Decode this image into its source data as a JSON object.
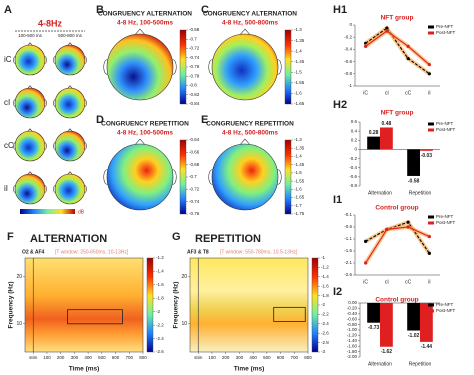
{
  "panels": {
    "A": {
      "panel": "A",
      "title": "4-8Hz",
      "windows": [
        "100-500 ms",
        "500-800 ms"
      ],
      "rows": [
        "iC",
        "cI",
        "cC",
        "iI"
      ],
      "colorbar_label": "dB"
    },
    "B": {
      "panel": "B",
      "title": "CONGRUENCY ALTERNATION",
      "subtitle": "4-8 Hz, 100-500ms",
      "colorbar_ticks": [
        -0.68,
        -0.7,
        -0.72,
        -0.74,
        -0.76,
        -0.78,
        -0.8,
        -0.82,
        -0.84
      ]
    },
    "C": {
      "panel": "C",
      "title": "CONGRUENCY ALTERNATION",
      "subtitle": "4-8 Hz, 500-800ms",
      "colorbar_ticks": [
        -1.3,
        -1.35,
        -1.4,
        -1.45,
        -1.5,
        -1.55,
        -1.6,
        -1.65
      ]
    },
    "D": {
      "panel": "D",
      "title": "CONGRUENCY REPETITION",
      "subtitle": "4-8 Hz, 100-500ms",
      "colorbar_ticks": [
        -0.64,
        -0.66,
        -0.68,
        -0.7,
        -0.72,
        -0.74,
        -0.76
      ]
    },
    "E": {
      "panel": "E",
      "title": "CONGRUENCY REPETITION",
      "subtitle": "4-8 Hz, 500-800ms",
      "colorbar_ticks": [
        -1.3,
        -1.35,
        -1.4,
        -1.45,
        -1.5,
        -1.55,
        -1.6,
        -1.65,
        -1.7,
        -1.75
      ]
    },
    "F": {
      "panel": "F",
      "title": "ALTERNATION",
      "channels": "O2 & AF4",
      "window": "[T window: 250-650ms, 10-13Hz]",
      "ylabel": "Frequency (Hz)",
      "xlabel": "Time (ms)",
      "xlim": [
        -60,
        800
      ],
      "xticks": [
        {
          "value": 0,
          "label": "stim"
        },
        100,
        200,
        300,
        400,
        500,
        600,
        700,
        800
      ],
      "ylim": [
        4,
        24
      ],
      "yticks": [
        10,
        20
      ],
      "colorbar_ticks": [
        -1.2,
        -1.4,
        -1.6,
        -1.8,
        -2,
        -2.2,
        -2.4,
        -2.6
      ]
    },
    "G": {
      "panel": "G",
      "title": "REPETITION",
      "channels": "AF3 & T8",
      "window": "[T window: 550-780ms, 10.5-13Hz]",
      "ylabel": "Frequency (Hz)",
      "xlabel": "Time (ms)",
      "xlim": [
        -60,
        800
      ],
      "xticks": [
        {
          "value": 0,
          "label": "stim"
        },
        100,
        200,
        300,
        400,
        500,
        600,
        700,
        800
      ],
      "ylim": [
        4,
        24
      ],
      "yticks": [
        10,
        20
      ],
      "colorbar_ticks": [
        -1,
        -1.2,
        -1.4,
        -1.6,
        -1.8,
        -2,
        -2.2,
        -2.4,
        -2.6,
        -2.8,
        -3
      ]
    }
  },
  "chart_data": [
    {
      "panel": "H1",
      "type": "line",
      "title": "NFT group",
      "categories": [
        "iC",
        "cI",
        "cC",
        "iI"
      ],
      "series": [
        {
          "name": "Pre-NFT",
          "color": "#000000",
          "values": [
            -0.3,
            -0.05,
            -0.55,
            -0.8
          ]
        },
        {
          "name": "Post-NFT",
          "color": "#e02020",
          "values": [
            -0.35,
            -0.1,
            -0.35,
            -0.65
          ]
        }
      ],
      "ylim": [
        -1,
        0
      ],
      "yticks": [
        -1,
        -0.8,
        -0.6,
        -0.4,
        -0.2,
        0
      ],
      "legend": "upper right"
    },
    {
      "panel": "H2",
      "type": "bar",
      "title": "NFT group",
      "categories": [
        "Alternation",
        "Repetition"
      ],
      "series": [
        {
          "name": "Pre-NFT",
          "color": "#000000",
          "values": [
            0.28,
            -0.58
          ]
        },
        {
          "name": "Post-NFT",
          "color": "#e02020",
          "values": [
            0.48,
            -0.03
          ]
        }
      ],
      "ylim": [
        -0.8,
        0.6
      ],
      "yticks": [
        -0.8,
        -0.6,
        -0.4,
        -0.2,
        0,
        0.2,
        0.4,
        0.6
      ],
      "legend": "upper right"
    },
    {
      "panel": "I1",
      "type": "line",
      "title": "Control group",
      "categories": [
        "iC",
        "cI",
        "cC",
        "iI"
      ],
      "series": [
        {
          "name": "Pre-NFT",
          "color": "#000000",
          "values": [
            -1.2,
            -0.7,
            -0.4,
            -1.7
          ]
        },
        {
          "name": "Post-NFT",
          "color": "#e02020",
          "values": [
            -2.1,
            -0.7,
            -0.6,
            -1.0
          ]
        }
      ],
      "ylim": [
        -2.6,
        -0.1
      ],
      "yticks": [
        -2.6,
        -2.1,
        -1.6,
        -1.1,
        -0.6,
        -0.1
      ],
      "legend": "upper right"
    },
    {
      "panel": "I2",
      "type": "bar",
      "title": "Control group",
      "categories": [
        "Alternation",
        "Repetition"
      ],
      "series": [
        {
          "name": "Pre-NFT",
          "color": "#000000",
          "values": [
            -0.73,
            -1.02
          ]
        },
        {
          "name": "Post-NFT",
          "color": "#e02020",
          "values": [
            -1.62,
            -1.44
          ]
        }
      ],
      "ylim": [
        -2,
        0
      ],
      "yticks": [
        {
          "value": -2,
          "label": "-2.00"
        },
        {
          "value": -1.8,
          "label": "-1.80"
        },
        {
          "value": -1.6,
          "label": "-1.60"
        },
        {
          "value": -1.4,
          "label": "-1.40"
        },
        {
          "value": -1.2,
          "label": "-1.20"
        },
        {
          "value": -1,
          "label": "-1.00"
        },
        {
          "value": -0.8,
          "label": "-0.80"
        },
        {
          "value": -0.6,
          "label": "-0.60"
        },
        {
          "value": -0.4,
          "label": "-0.40"
        },
        {
          "value": -0.2,
          "label": "-0.20"
        },
        {
          "value": 0,
          "label": "0.00"
        }
      ],
      "legend": "upper right"
    }
  ]
}
